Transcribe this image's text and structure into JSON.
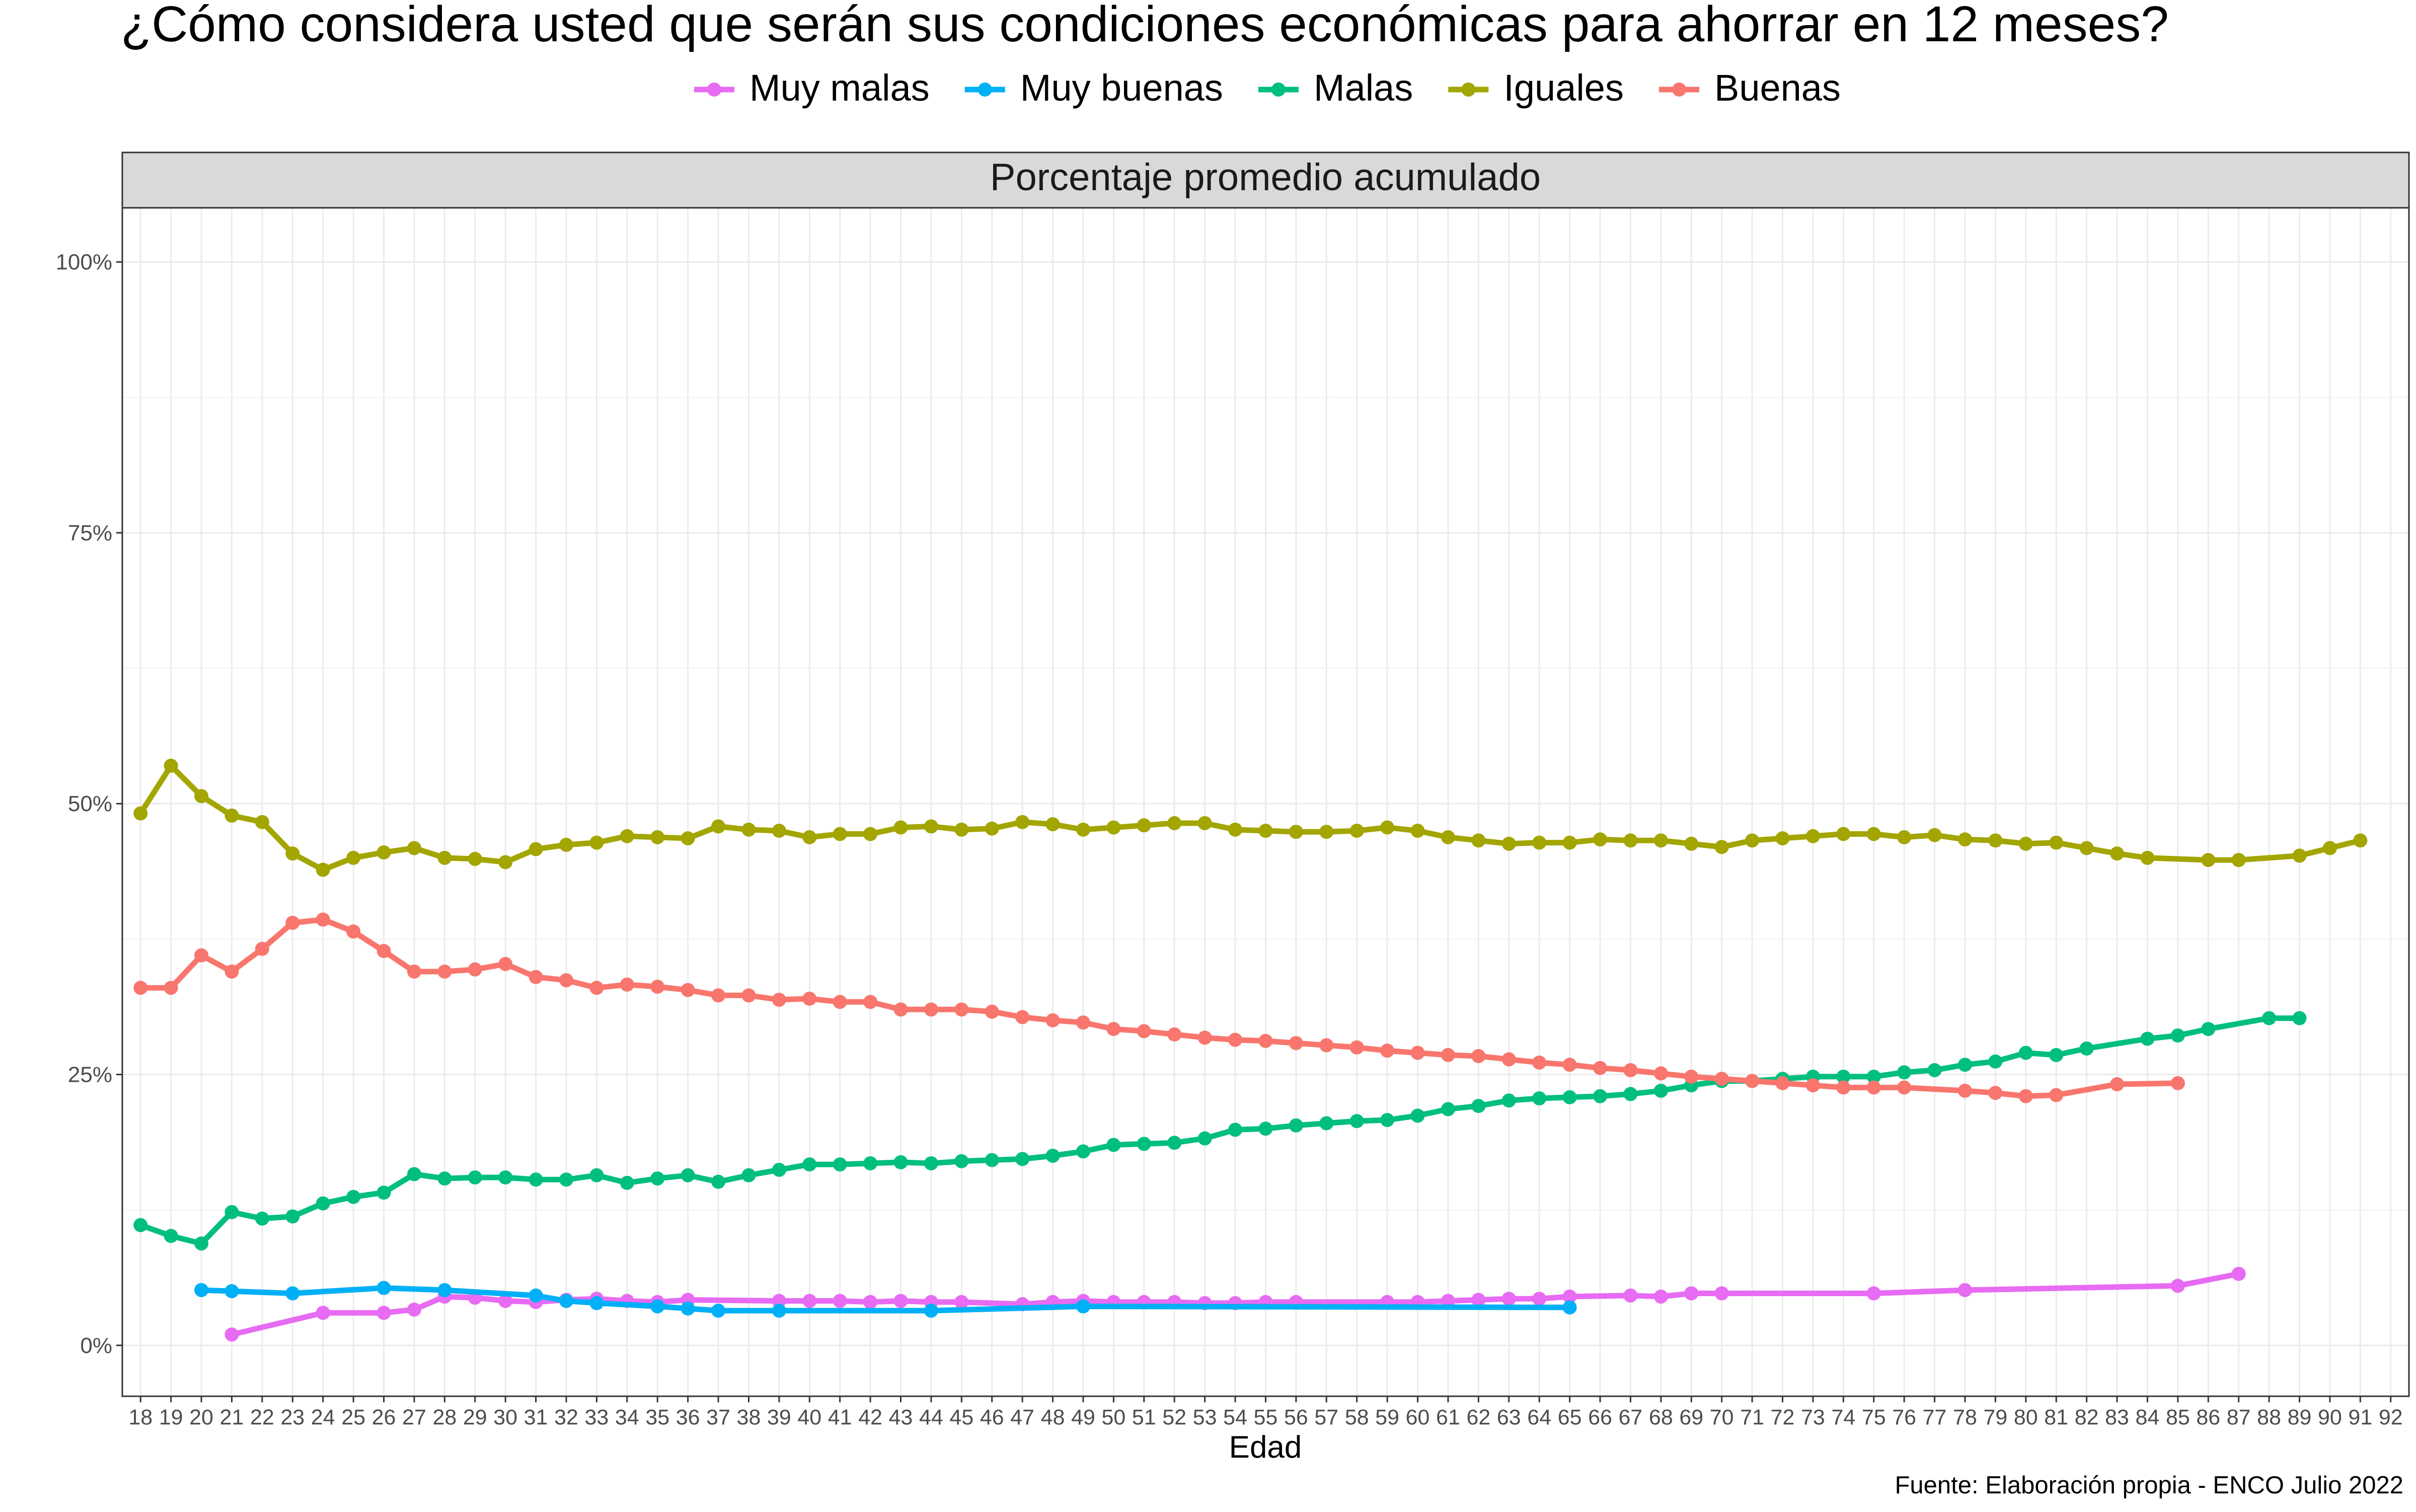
{
  "chart_data": {
    "type": "line",
    "title": "¿Cómo considera usted que serán sus condiciones económicas para ahorrar en 12 meses?",
    "panel_title": "Porcentaje promedio acumulado",
    "xlabel": "Edad",
    "ylabel": "",
    "caption": "Fuente: Elaboración propia - ENCO Julio 2022",
    "x_ticks": [
      18,
      19,
      20,
      21,
      22,
      23,
      24,
      25,
      26,
      27,
      28,
      29,
      30,
      31,
      32,
      33,
      34,
      35,
      36,
      37,
      38,
      39,
      40,
      41,
      42,
      43,
      44,
      45,
      46,
      47,
      48,
      49,
      50,
      51,
      52,
      53,
      54,
      55,
      56,
      57,
      58,
      59,
      60,
      61,
      62,
      63,
      64,
      65,
      66,
      67,
      68,
      69,
      70,
      71,
      72,
      73,
      74,
      75,
      76,
      77,
      78,
      79,
      80,
      81,
      82,
      83,
      84,
      85,
      86,
      87,
      88,
      89,
      90,
      91,
      92
    ],
    "xlim": [
      17.4,
      92.6
    ],
    "y_ticks": [
      0,
      25,
      50,
      75,
      100
    ],
    "y_tick_labels": [
      "0%",
      "25%",
      "50%",
      "75%",
      "100%"
    ],
    "ylim": [
      -4.7,
      105
    ],
    "grid": true,
    "legend_position": "top",
    "series": [
      {
        "name": "Muy malas",
        "color": "#E76BF3",
        "x": [
          21,
          24,
          26,
          27,
          28,
          29,
          30,
          31,
          32,
          33,
          34,
          35,
          36,
          39,
          40,
          41,
          42,
          43,
          44,
          45,
          47,
          48,
          49,
          50,
          51,
          52,
          53,
          54,
          55,
          56,
          59,
          60,
          61,
          62,
          63,
          64,
          65,
          67,
          68,
          69,
          70,
          75,
          78,
          85,
          87
        ],
        "y": [
          1.0,
          3.0,
          3.0,
          3.3,
          4.5,
          4.4,
          4.1,
          4.0,
          4.2,
          4.3,
          4.1,
          4.0,
          4.2,
          4.1,
          4.1,
          4.1,
          4.0,
          4.1,
          4.0,
          4.0,
          3.8,
          4.0,
          4.1,
          4.0,
          4.0,
          4.0,
          3.9,
          3.9,
          4.0,
          4.0,
          4.0,
          4.0,
          4.1,
          4.2,
          4.3,
          4.3,
          4.5,
          4.6,
          4.5,
          4.8,
          4.8,
          4.8,
          5.1,
          5.5,
          6.6
        ]
      },
      {
        "name": "Muy buenas",
        "color": "#00B0F6",
        "x": [
          20,
          21,
          23,
          26,
          28,
          31,
          32,
          33,
          35,
          36,
          37,
          39,
          44,
          49,
          65
        ],
        "y": [
          5.1,
          5.0,
          4.8,
          5.3,
          5.1,
          4.6,
          4.1,
          3.9,
          3.6,
          3.4,
          3.2,
          3.2,
          3.2,
          3.6,
          3.5
        ]
      },
      {
        "name": "Malas",
        "color": "#00BF7D",
        "x": [
          18,
          19,
          20,
          21,
          22,
          23,
          24,
          25,
          26,
          27,
          28,
          29,
          30,
          31,
          32,
          33,
          34,
          35,
          36,
          37,
          38,
          39,
          40,
          41,
          42,
          43,
          44,
          45,
          46,
          47,
          48,
          49,
          50,
          51,
          52,
          53,
          54,
          55,
          56,
          57,
          58,
          59,
          60,
          61,
          62,
          63,
          64,
          65,
          66,
          67,
          68,
          69,
          70,
          71,
          72,
          73,
          74,
          75,
          76,
          77,
          78,
          79,
          80,
          81,
          82,
          84,
          85,
          86,
          88,
          89
        ],
        "y": [
          11.1,
          10.1,
          9.4,
          12.3,
          11.7,
          11.9,
          13.1,
          13.7,
          14.1,
          15.8,
          15.4,
          15.5,
          15.5,
          15.3,
          15.3,
          15.7,
          15.0,
          15.4,
          15.7,
          15.1,
          15.7,
          16.2,
          16.7,
          16.7,
          16.8,
          16.9,
          16.8,
          17.0,
          17.1,
          17.2,
          17.5,
          17.9,
          18.5,
          18.6,
          18.7,
          19.1,
          19.9,
          20.0,
          20.3,
          20.5,
          20.7,
          20.8,
          21.2,
          21.8,
          22.1,
          22.6,
          22.8,
          22.9,
          23.0,
          23.2,
          23.5,
          24.0,
          24.4,
          24.4,
          24.6,
          24.8,
          24.8,
          24.8,
          25.2,
          25.4,
          25.9,
          26.2,
          27.0,
          26.8,
          27.4,
          28.3,
          28.6,
          29.2,
          30.2,
          30.2
        ]
      },
      {
        "name": "Iguales",
        "color": "#A3A500",
        "x": [
          18,
          19,
          20,
          21,
          22,
          23,
          24,
          25,
          26,
          27,
          28,
          29,
          30,
          31,
          32,
          33,
          34,
          35,
          36,
          37,
          38,
          39,
          40,
          41,
          42,
          43,
          44,
          45,
          46,
          47,
          48,
          49,
          50,
          51,
          52,
          53,
          54,
          55,
          56,
          57,
          58,
          59,
          60,
          61,
          62,
          63,
          64,
          65,
          66,
          67,
          68,
          69,
          70,
          71,
          72,
          73,
          74,
          75,
          76,
          77,
          78,
          79,
          80,
          81,
          82,
          83,
          84,
          86,
          87,
          89,
          90,
          91
        ],
        "y": [
          49.1,
          53.5,
          50.7,
          48.9,
          48.3,
          45.4,
          43.9,
          45.0,
          45.5,
          45.9,
          45.0,
          44.9,
          44.6,
          45.8,
          46.2,
          46.4,
          47.0,
          46.9,
          46.8,
          47.9,
          47.6,
          47.5,
          46.9,
          47.2,
          47.2,
          47.8,
          47.9,
          47.6,
          47.7,
          48.3,
          48.1,
          47.6,
          47.8,
          48.0,
          48.2,
          48.2,
          47.6,
          47.5,
          47.4,
          47.4,
          47.5,
          47.8,
          47.5,
          46.9,
          46.6,
          46.3,
          46.4,
          46.4,
          46.7,
          46.6,
          46.6,
          46.3,
          46.0,
          46.6,
          46.8,
          47.0,
          47.2,
          47.2,
          46.9,
          47.1,
          46.7,
          46.6,
          46.3,
          46.4,
          45.9,
          45.4,
          45.0,
          44.8,
          44.8,
          45.2,
          45.9,
          46.6
        ]
      },
      {
        "name": "Buenas",
        "color": "#F8766D",
        "x": [
          18,
          19,
          20,
          21,
          22,
          23,
          24,
          25,
          26,
          27,
          28,
          29,
          30,
          31,
          32,
          33,
          34,
          35,
          36,
          37,
          38,
          39,
          40,
          41,
          42,
          43,
          44,
          45,
          46,
          47,
          48,
          49,
          50,
          51,
          52,
          53,
          54,
          55,
          56,
          57,
          58,
          59,
          60,
          61,
          62,
          63,
          64,
          65,
          66,
          67,
          68,
          69,
          70,
          71,
          72,
          73,
          74,
          75,
          76,
          78,
          79,
          80,
          81,
          83,
          85
        ],
        "y": [
          33.0,
          33.0,
          36.0,
          34.5,
          36.6,
          39.0,
          39.3,
          38.2,
          36.4,
          34.5,
          34.5,
          34.7,
          35.2,
          34.0,
          33.7,
          33.0,
          33.3,
          33.1,
          32.8,
          32.3,
          32.3,
          31.9,
          32.0,
          31.7,
          31.7,
          31.0,
          31.0,
          31.0,
          30.8,
          30.3,
          30.0,
          29.8,
          29.2,
          29.0,
          28.7,
          28.4,
          28.2,
          28.1,
          27.9,
          27.7,
          27.5,
          27.2,
          27.0,
          26.8,
          26.7,
          26.4,
          26.1,
          25.9,
          25.6,
          25.4,
          25.1,
          24.8,
          24.6,
          24.4,
          24.2,
          24.0,
          23.8,
          23.8,
          23.8,
          23.5,
          23.3,
          23.0,
          23.1,
          24.1,
          24.2
        ]
      }
    ]
  }
}
